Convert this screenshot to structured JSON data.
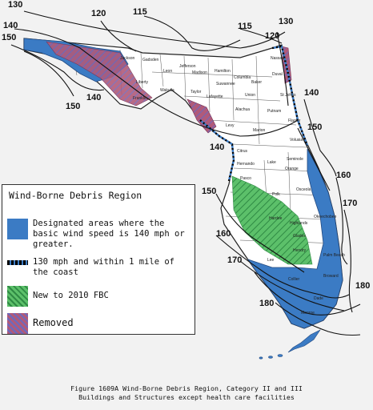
{
  "legend": {
    "title": "Wind-Borne Debris Region",
    "items": [
      {
        "label": "Designated areas where the basic wind speed is 140 mph or greater.",
        "color": "#3b7bc4"
      },
      {
        "label": "130 mph and within 1 mile of the coast",
        "color": "#000000"
      },
      {
        "label": "New to 2010 FBC",
        "color": "#5cc06a"
      },
      {
        "label": "Removed",
        "color": "#b05a7a"
      }
    ]
  },
  "contours": [
    {
      "label": "130"
    },
    {
      "label": "140"
    },
    {
      "label": "150"
    },
    {
      "label": "150"
    },
    {
      "label": "140"
    },
    {
      "label": "120"
    },
    {
      "label": "115"
    },
    {
      "label": "115"
    },
    {
      "label": "120"
    },
    {
      "label": "130"
    },
    {
      "label": "140"
    },
    {
      "label": "150"
    },
    {
      "label": "140"
    },
    {
      "label": "160"
    },
    {
      "label": "150"
    },
    {
      "label": "170"
    },
    {
      "label": "160"
    },
    {
      "label": "170"
    },
    {
      "label": "180"
    },
    {
      "label": "180"
    }
  ],
  "counties": [
    "Jackson",
    "Gadsden",
    "Leon",
    "Jefferson",
    "Madison",
    "Hamilton",
    "Columbia",
    "Baker",
    "Duval",
    "Nassau",
    "Liberty",
    "Wakulla",
    "Franklin",
    "Taylor",
    "Lafayette",
    "Suwannee",
    "Union",
    "Alachua",
    "Putnam",
    "St Johns",
    "Flagler",
    "Levy",
    "Marion",
    "Volusia",
    "Citrus",
    "Hernando",
    "Lake",
    "Seminole",
    "Orange",
    "Pasco",
    "Polk",
    "Osceola",
    "Hardee",
    "Highlands",
    "Okeechobee",
    "Glades",
    "Hendry",
    "Palm Beach",
    "Lee",
    "Collier",
    "Broward",
    "Dade",
    "Monroe"
  ],
  "caption": {
    "line1": "Figure 1609A Wind-Borne Debris Region, Category II and III",
    "line2": "Buildings and Structures except health care facilities"
  }
}
